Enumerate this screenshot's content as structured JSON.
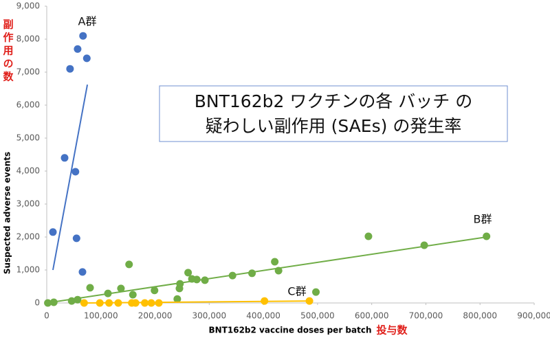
{
  "chart_data": {
    "type": "scatter",
    "title_lines": [
      "BNT162b2 ワクチンの各 バッチ の",
      "疑わしい副作用 (SAEs) の発生率"
    ],
    "x_label": "BNT162b2 vaccine doses per batch",
    "y_label": "Suspected adverse events",
    "x_annotation": "投与数",
    "y_annotation": "副作用の数",
    "xlim": [
      0,
      900000
    ],
    "ylim": [
      0,
      9000
    ],
    "xticks": [
      0,
      {
        "value": 100000,
        "label": "100,000"
      },
      {
        "value": 200000,
        "label": "200,000"
      },
      {
        "value": 300000,
        "label": "300,000"
      },
      {
        "value": 400000,
        "label": "400,000"
      },
      {
        "value": 500000,
        "label": "500,000"
      },
      {
        "value": 600000,
        "label": "600,000"
      },
      {
        "value": 700000,
        "label": "700,000"
      },
      {
        "value": 800000,
        "label": "800,000"
      },
      {
        "value": 900000,
        "label": "900,000"
      }
    ],
    "yticks": [
      0,
      {
        "value": 1000,
        "label": "1,000"
      },
      {
        "value": 2000,
        "label": "2,000"
      },
      {
        "value": 3000,
        "label": "3,000"
      },
      {
        "value": 4000,
        "label": "4,000"
      },
      {
        "value": 5000,
        "label": "5,000"
      },
      {
        "value": 6000,
        "label": "6,000"
      },
      {
        "value": 7000,
        "label": "7,000"
      },
      {
        "value": 8000,
        "label": "8,000"
      },
      {
        "value": 9000,
        "label": "9,000"
      }
    ],
    "series": [
      {
        "name": "A群",
        "color": "#4472c4",
        "x": [
          11400,
          33000,
          43000,
          53000,
          57000,
          67000,
          74000,
          55000,
          66000
        ],
        "values": [
          2150,
          4400,
          7100,
          3980,
          7700,
          8100,
          7420,
          1960,
          940
        ],
        "trendline": {
          "x": [
            11400,
            75000
          ],
          "y": [
            1000,
            6620
          ]
        }
      },
      {
        "name": "B群",
        "color": "#70ad47",
        "x": [
          2000,
          13000,
          46000,
          57000,
          80000,
          113000,
          137000,
          152000,
          159000,
          199000,
          241000,
          245000,
          246000,
          261000,
          268000,
          277000,
          292000,
          343000,
          379000,
          421000,
          428000,
          497000,
          594000,
          697000,
          812000
        ],
        "values": [
          0,
          20,
          60,
          100,
          460,
          290,
          440,
          1170,
          250,
          380,
          120,
          440,
          580,
          920,
          730,
          710,
          690,
          830,
          900,
          1250,
          980,
          330,
          2020,
          1750,
          2020
        ],
        "trendline": {
          "x": [
            0,
            812000
          ],
          "y": [
            0,
            2000
          ]
        }
      },
      {
        "name": "C群",
        "color": "#ffc000",
        "x": [
          69000,
          98000,
          115000,
          132000,
          157000,
          164000,
          181000,
          193000,
          207000,
          402000,
          485000
        ],
        "values": [
          0,
          0,
          0,
          0,
          0,
          0,
          0,
          0,
          0,
          60,
          60
        ],
        "trendline": {
          "x": [
            69000,
            485000
          ],
          "y": [
            0,
            60
          ]
        }
      }
    ]
  }
}
